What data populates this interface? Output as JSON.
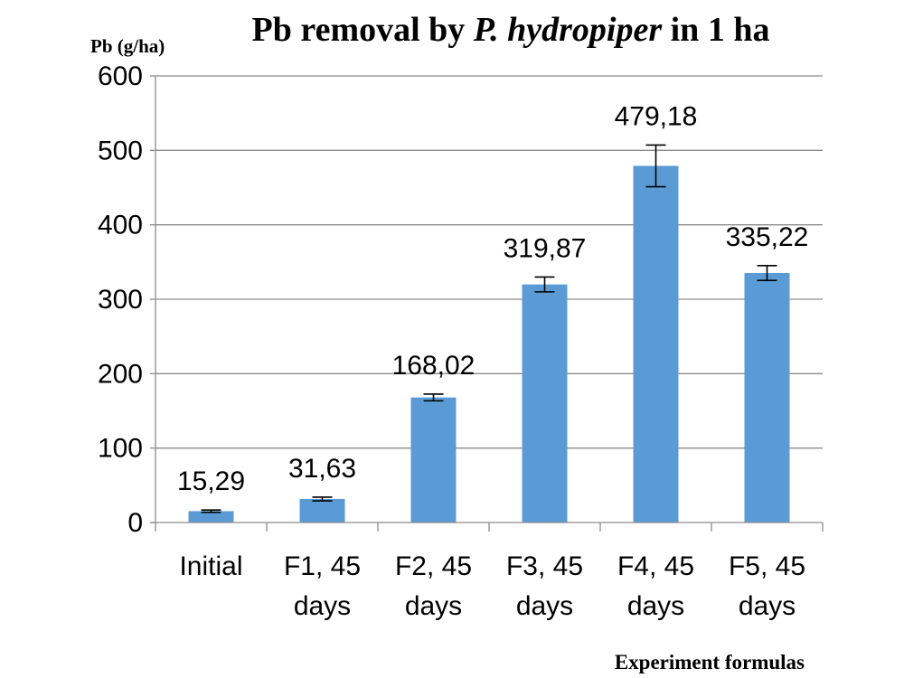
{
  "chart_data": {
    "type": "bar",
    "title": {
      "prefix": "Pb removal by ",
      "species": "P. hydropiper",
      "suffix": " in 1 ha"
    },
    "ylabel": "Pb (g/ha)",
    "xlabel": "Experiment formulas",
    "ylim": [
      0,
      600
    ],
    "yticks": [
      0,
      100,
      200,
      300,
      400,
      500,
      600
    ],
    "grid": true,
    "legend": "none",
    "bar_color": "#5b9bd5",
    "categories": [
      [
        "Initial"
      ],
      [
        "F1, 45",
        "days"
      ],
      [
        "F2, 45",
        "days"
      ],
      [
        "F3, 45",
        "days"
      ],
      [
        "F4, 45",
        "days"
      ],
      [
        "F5, 45",
        "days"
      ]
    ],
    "values": [
      15.29,
      31.63,
      168.02,
      319.87,
      479.18,
      335.22
    ],
    "value_labels": [
      "15,29",
      "31,63",
      "168,02",
      "319,87",
      "479,18",
      "335,22"
    ],
    "error": [
      1.5,
      2.5,
      4.5,
      10,
      28,
      10
    ]
  }
}
